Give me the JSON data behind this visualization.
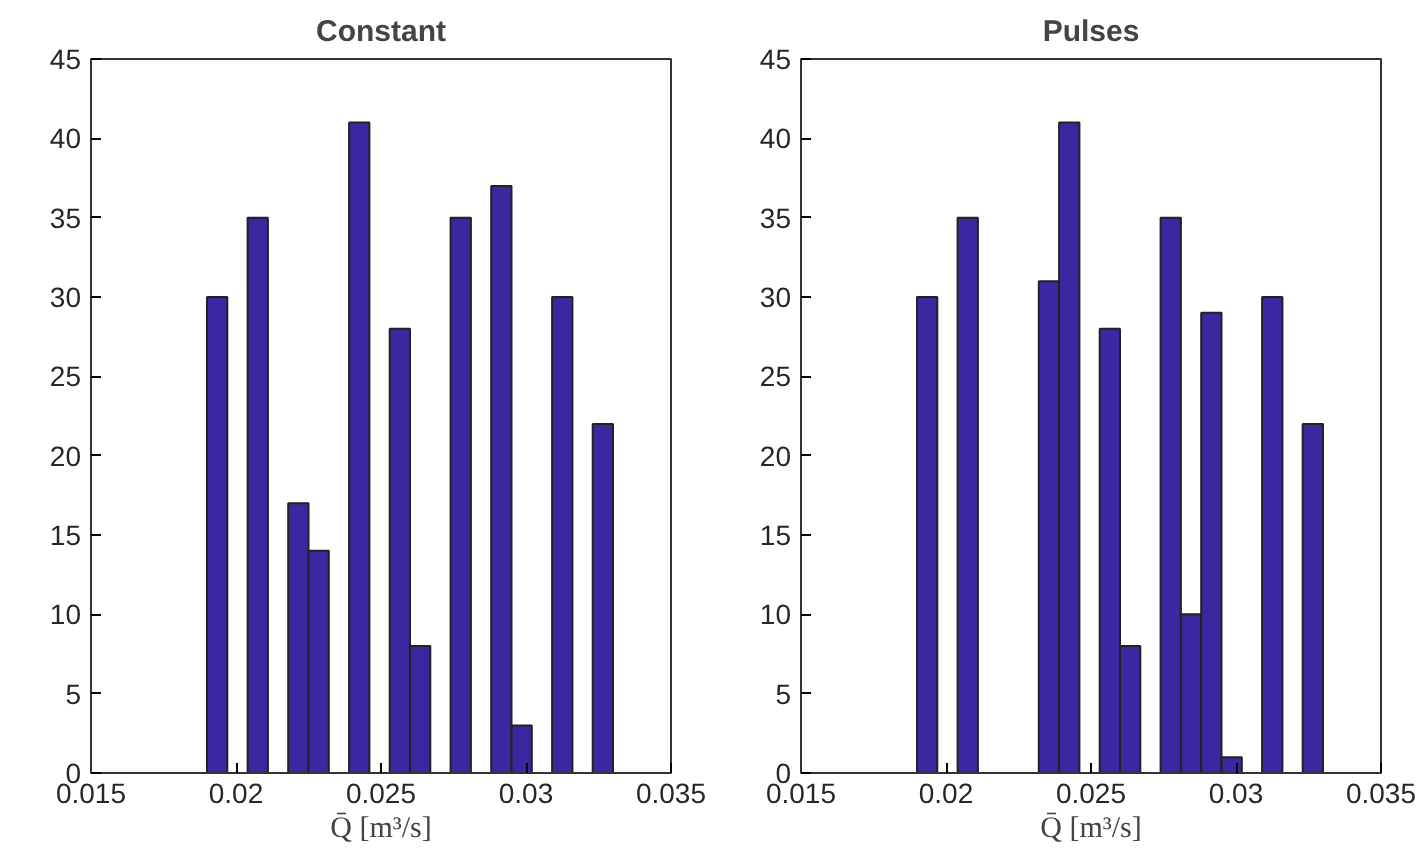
{
  "chart_data": [
    {
      "type": "histogram",
      "title": "Constant",
      "xlabel": "Q̄ [m³/s]",
      "color": "#3a28a0",
      "bins": [
        0.019,
        0.0197,
        0.0204,
        0.0211,
        0.0218,
        0.0225,
        0.0232,
        0.0239,
        0.0246,
        0.0253,
        0.026,
        0.0267,
        0.0274,
        0.0281,
        0.0288,
        0.0295,
        0.0302,
        0.0309,
        0.0316,
        0.0323,
        0.033
      ],
      "values": [
        30,
        0,
        35,
        0,
        17,
        14,
        0,
        41,
        0,
        28,
        8,
        0,
        35,
        0,
        37,
        3,
        0,
        30,
        0,
        22
      ],
      "xlim": [
        0.015,
        0.035
      ],
      "xticks": [
        0.015,
        0.02,
        0.025,
        0.03,
        0.035
      ],
      "ylim": [
        0,
        45
      ],
      "yticks": [
        0,
        5,
        10,
        15,
        20,
        25,
        30,
        35,
        40,
        45
      ],
      "grid": false
    },
    {
      "type": "histogram",
      "title": "Pulses",
      "xlabel": "Q̄ [m³/s]",
      "color": "#3a28a0",
      "bins": [
        0.019,
        0.0197,
        0.0204,
        0.0211,
        0.0218,
        0.0225,
        0.0232,
        0.0239,
        0.0246,
        0.0253,
        0.026,
        0.0267,
        0.0274,
        0.0281,
        0.0288,
        0.0295,
        0.0302,
        0.0309,
        0.0316,
        0.0323,
        0.033
      ],
      "values": [
        30,
        0,
        35,
        0,
        0,
        0,
        31,
        41,
        0,
        28,
        8,
        0,
        35,
        10,
        29,
        1,
        0,
        30,
        0,
        22
      ],
      "xlim": [
        0.015,
        0.035
      ],
      "xticks": [
        0.015,
        0.02,
        0.025,
        0.03,
        0.035
      ],
      "ylim": [
        0,
        45
      ],
      "yticks": [
        0,
        5,
        10,
        15,
        20,
        25,
        30,
        35,
        40,
        45
      ],
      "grid": false
    }
  ]
}
